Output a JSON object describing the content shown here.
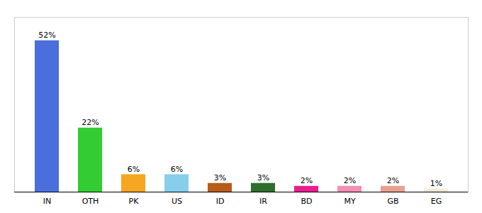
{
  "chart_data": {
    "type": "bar",
    "categories": [
      "IN",
      "OTH",
      "PK",
      "US",
      "ID",
      "IR",
      "BD",
      "MY",
      "GB",
      "EG"
    ],
    "values": [
      52,
      22,
      6,
      6,
      3,
      3,
      2,
      2,
      2,
      1
    ],
    "value_labels": [
      "52%",
      "22%",
      "6%",
      "6%",
      "3%",
      "3%",
      "2%",
      "2%",
      "2%",
      "1%"
    ],
    "colors": [
      "#4a6fdc",
      "#33cc33",
      "#f5a623",
      "#87ceeb",
      "#b85c1a",
      "#2d6e2d",
      "#e91e8c",
      "#f48fb1",
      "#e8a090",
      "#f0ead6"
    ],
    "ylim": [
      0,
      60
    ],
    "data_labels": true,
    "tick_labels": "x",
    "grid": false
  }
}
